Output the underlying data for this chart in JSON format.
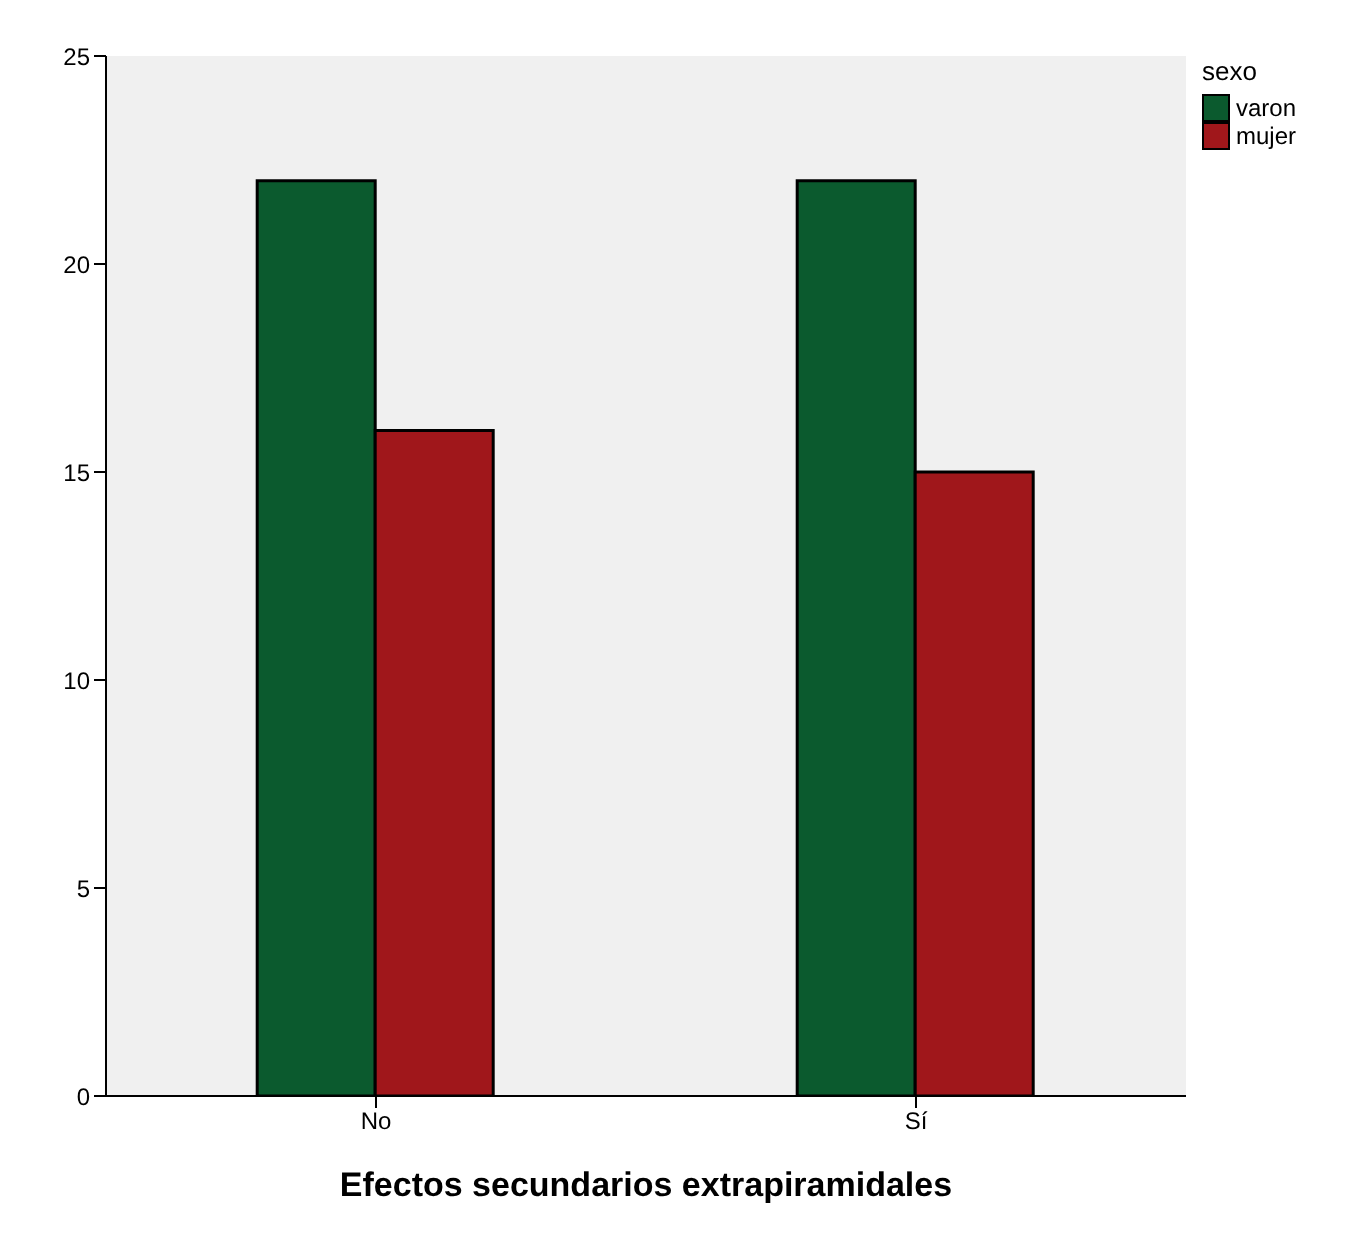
{
  "chart_data": {
    "type": "bar",
    "xlabel": "Efectos secundarios extrapiramidales",
    "legend_title": "sexo",
    "categories": [
      "No",
      "Sí"
    ],
    "series": [
      {
        "name": "varon",
        "color": "#0b5a2e",
        "values": [
          22,
          22
        ]
      },
      {
        "name": "mujer",
        "color": "#a0171b",
        "values": [
          16,
          15
        ]
      }
    ],
    "ylim": [
      0,
      25
    ],
    "yticks": [
      0,
      5,
      10,
      15,
      20,
      25
    ],
    "grid": false,
    "legend": "top right"
  }
}
